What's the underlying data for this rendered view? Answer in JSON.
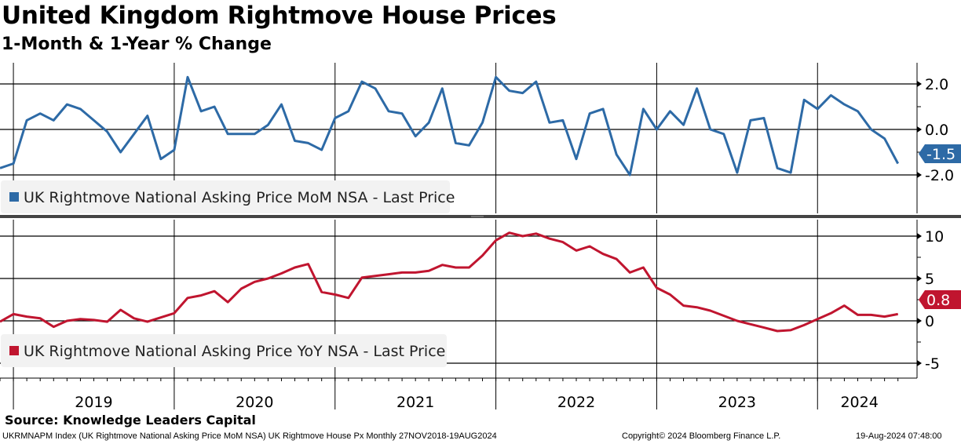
{
  "title": "United Kingdom Rightmove House Prices",
  "subtitle": "1-Month & 1-Year % Change",
  "source": "Source: Knowledge Leaders Capital",
  "footer": {
    "left": "UKRMNAPM Index (UK Rightmove National Asking Price MoM NSA) UK Rightmove House Px  Monthly 27NOV2018-19AUG2024",
    "middle": "Copyright© 2024 Bloomberg Finance L.P.",
    "right": "19-Aug-2024 07:48:00"
  },
  "chart_data": [
    {
      "type": "line",
      "name": "UK Rightmove National Asking Price MoM NSA - Last Price",
      "legend": "UK Rightmove National Asking Price MoM NSA - Last Price",
      "color": "#2d6aa6",
      "ylim": [
        -3.8,
        2.9
      ],
      "yticks": [
        2.0,
        0.0,
        -2.0
      ],
      "ytick_labels": [
        "2.0",
        "0.0",
        "-2.0"
      ],
      "last_label": "-1.5",
      "values": [
        -1.7,
        -1.5,
        0.4,
        0.7,
        0.4,
        1.1,
        0.9,
        0.4,
        -0.1,
        -1.0,
        -0.2,
        0.6,
        -1.3,
        -0.9,
        2.3,
        0.8,
        1.0,
        -0.2,
        -0.2,
        -0.2,
        0.2,
        1.1,
        -0.5,
        -0.6,
        -0.9,
        0.5,
        0.8,
        2.1,
        1.8,
        0.8,
        0.7,
        -0.3,
        0.3,
        1.8,
        -0.6,
        -0.7,
        0.3,
        2.3,
        1.7,
        1.6,
        2.1,
        0.3,
        0.4,
        -1.3,
        0.7,
        0.9,
        -1.1,
        -2.0,
        0.9,
        0.0,
        0.8,
        0.2,
        1.8,
        0.0,
        -0.2,
        -1.9,
        0.4,
        0.5,
        -1.7,
        -1.9,
        1.3,
        0.9,
        1.5,
        1.1,
        0.8,
        0.0,
        -0.4,
        -1.5
      ]
    },
    {
      "type": "line",
      "name": "UK Rightmove National Asking Price YoY NSA - Last Price",
      "legend": "UK Rightmove National Asking Price YoY NSA - Last Price",
      "color": "#c0152f",
      "ylim": [
        -6.7,
        11.8
      ],
      "yticks": [
        10,
        5,
        0,
        -5
      ],
      "ytick_labels": [
        "10",
        "5",
        "0",
        "-5"
      ],
      "last_label": "0.8",
      "values": [
        -0.1,
        0.8,
        0.5,
        0.3,
        -0.7,
        0.0,
        0.2,
        0.1,
        -0.1,
        1.3,
        0.3,
        -0.1,
        0.4,
        0.9,
        2.7,
        3.0,
        3.5,
        2.2,
        3.8,
        4.6,
        5.0,
        5.6,
        6.3,
        6.7,
        3.4,
        3.1,
        2.7,
        5.1,
        5.3,
        5.5,
        5.7,
        5.7,
        5.9,
        6.6,
        6.3,
        6.3,
        7.7,
        9.5,
        10.4,
        10.0,
        10.3,
        9.7,
        9.3,
        8.3,
        8.8,
        7.9,
        7.3,
        5.7,
        6.3,
        3.9,
        3.1,
        1.8,
        1.6,
        1.2,
        0.6,
        0.0,
        -0.4,
        -0.8,
        -1.2,
        -1.1,
        -0.5,
        0.2,
        0.9,
        1.8,
        0.7,
        0.7,
        0.5,
        0.8
      ]
    }
  ],
  "x_axis": {
    "years": [
      "2019",
      "2020",
      "2021",
      "2022",
      "2023",
      "2024"
    ]
  }
}
